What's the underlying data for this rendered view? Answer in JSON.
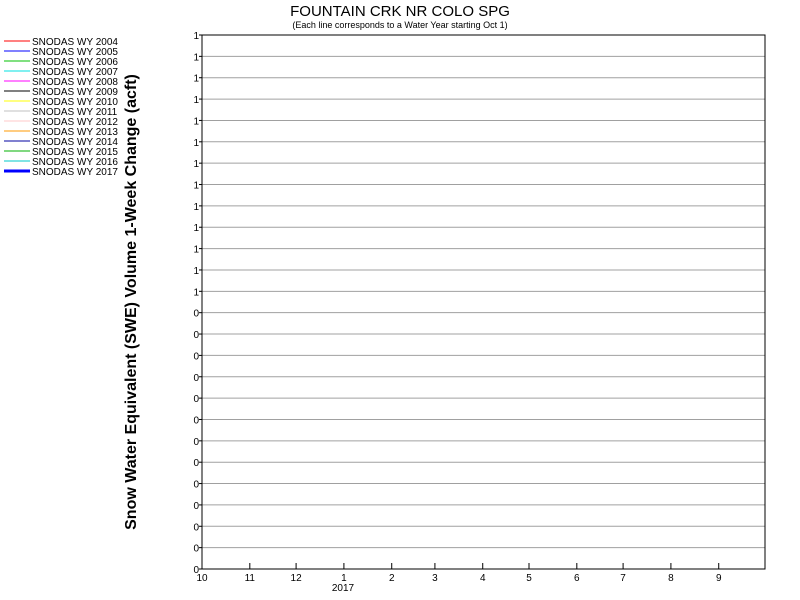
{
  "chart_data": {
    "type": "line",
    "title": "FOUNTAIN CRK NR COLO SPG",
    "subtitle": "(Each line corresponds to a Water Year starting Oct 1)",
    "ylabel": "Snow Water Equivalent (SWE) Volume 1-Week Change (acft)",
    "xlabel": "",
    "x_tick_labels": [
      "10",
      "11",
      "12",
      "1",
      "2",
      "3",
      "4",
      "5",
      "6",
      "7",
      "8",
      "9"
    ],
    "x_year_label": "2017",
    "y_tick_labels": [
      "1",
      "1",
      "1",
      "1",
      "1",
      "1",
      "1",
      "1",
      "1",
      "1",
      "1",
      "1",
      "1",
      "0",
      "0",
      "0",
      "0",
      "0",
      "0",
      "0",
      "0",
      "0",
      "0",
      "0",
      "0",
      "0"
    ],
    "grid": true,
    "legend_position": "top-left",
    "series": [
      {
        "name": "SNODAS WY 2004",
        "color": "#ff0000",
        "values": []
      },
      {
        "name": "SNODAS WY 2005",
        "color": "#0000ff",
        "values": []
      },
      {
        "name": "SNODAS WY 2006",
        "color": "#00c000",
        "values": []
      },
      {
        "name": "SNODAS WY 2007",
        "color": "#00e0e0",
        "values": []
      },
      {
        "name": "SNODAS WY 2008",
        "color": "#ff00ff",
        "values": []
      },
      {
        "name": "SNODAS WY 2009",
        "color": "#000000",
        "values": []
      },
      {
        "name": "SNODAS WY 2010",
        "color": "#ffff00",
        "values": []
      },
      {
        "name": "SNODAS WY 2011",
        "color": "#c0c0c0",
        "values": []
      },
      {
        "name": "SNODAS WY 2012",
        "color": "#ffc8c8",
        "values": []
      },
      {
        "name": "SNODAS WY 2013",
        "color": "#ff9900",
        "values": []
      },
      {
        "name": "SNODAS WY 2014",
        "color": "#0000a0",
        "values": []
      },
      {
        "name": "SNODAS WY 2015",
        "color": "#00b000",
        "values": []
      },
      {
        "name": "SNODAS WY 2016",
        "color": "#00c8c8",
        "values": []
      },
      {
        "name": "SNODAS WY 2017",
        "color": "#0000ff",
        "bold": true,
        "values": []
      }
    ]
  }
}
